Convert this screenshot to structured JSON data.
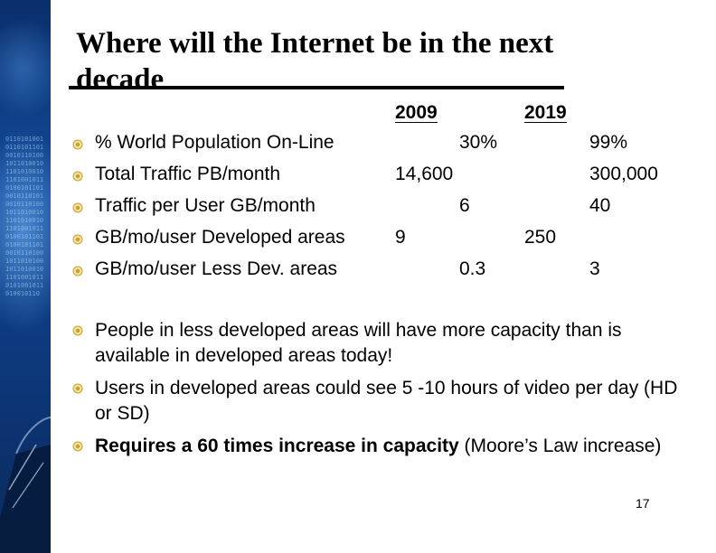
{
  "title": "Where will the Internet be in the next decade",
  "table": {
    "year_headers": [
      "2009",
      "2019"
    ],
    "rows": [
      {
        "label": "% World Population On-Line",
        "v2009": "30%",
        "v2019": "99%"
      },
      {
        "label": "Total Traffic PB/month",
        "v2009": "14,600",
        "v2019": "300,000"
      },
      {
        "label": "Traffic per User GB/month",
        "v2009": "6",
        "v2019": "40"
      },
      {
        "label": "GB/mo/user Developed areas",
        "v2009": "9",
        "v2019": "250"
      },
      {
        "label": "GB/mo/user Less Dev. areas",
        "v2009": "0.3",
        "v2019": "3"
      }
    ]
  },
  "bullets": [
    {
      "text": "People in  less developed areas will have more capacity than is available in developed areas today!"
    },
    {
      "text": "Users in developed areas could see 5 -10 hours of video per day (HD or SD)"
    },
    {
      "bold_text": "Requires a 60 times increase in capacity",
      "text": " (Moore’s Law increase)"
    }
  ],
  "page_number": "17",
  "colors": {
    "sidebar": "#134a9a",
    "bullet": "#d8b53a"
  }
}
